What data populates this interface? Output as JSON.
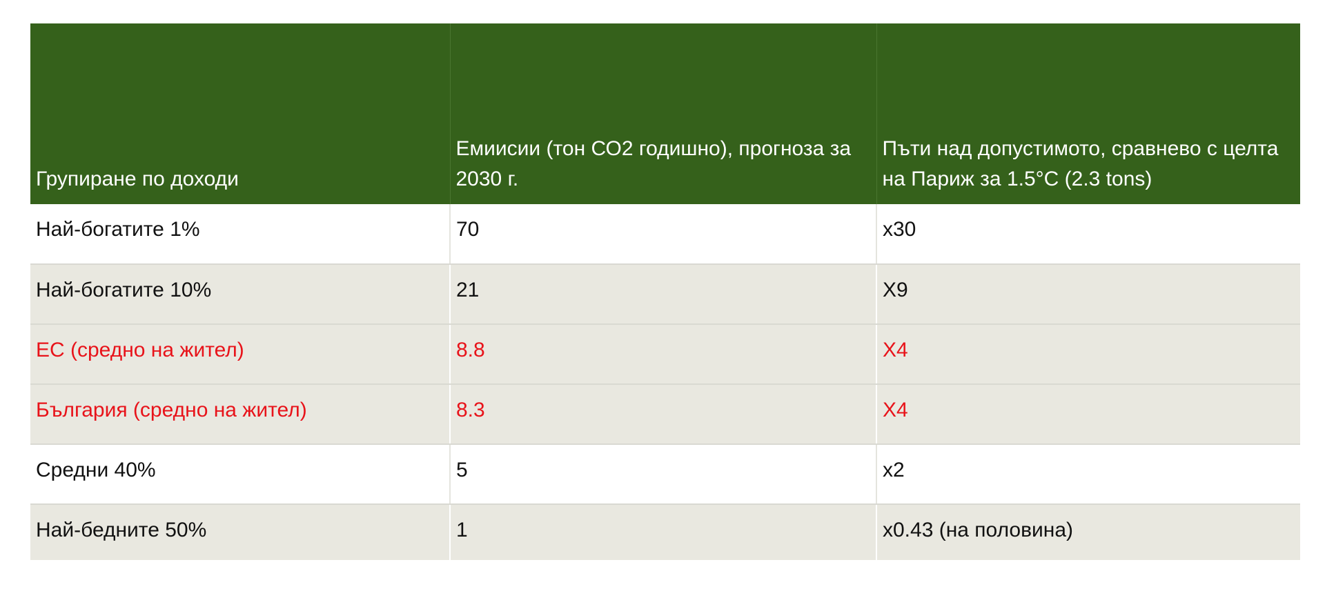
{
  "table": {
    "headers": [
      "Групиране по доходи",
      "Емиисии (тон СО2 годишно), прогноза за 2030 г.",
      "Пъти над допустимото, сравнево с целта на Париж за 1.5°C (2.3 tons)"
    ],
    "rows": [
      {
        "group": "Най-богатите 1%",
        "emissions": "70",
        "times": "x30"
      },
      {
        "group": "Най-богатите 10%",
        "emissions": "21",
        "times": "X9"
      },
      {
        "group": "ЕС (средно на жител)",
        "emissions": "8.8",
        "times": "X4"
      },
      {
        "group": "България (средно на жител)",
        "emissions": "8.3",
        "times": "X4"
      },
      {
        "group": "Средни 40%",
        "emissions": "5",
        "times": "x2"
      },
      {
        "group": "Най-бедните 50%",
        "emissions": "1",
        "times": "x0.43 (на половина)"
      }
    ]
  },
  "colors": {
    "header_bg": "#35611b",
    "header_text": "#ffffff",
    "highlight_text": "#e8131a",
    "band_tan": "#e9e8e0"
  }
}
